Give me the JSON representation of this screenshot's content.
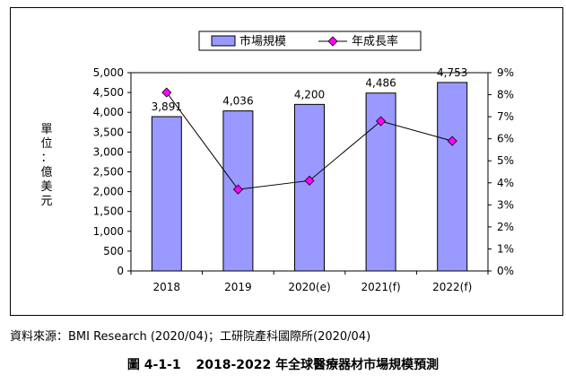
{
  "chart_data": {
    "type": "bar+line",
    "categories": [
      "2018",
      "2019",
      "2020(e)",
      "2021(f)",
      "2022(f)"
    ],
    "series": [
      {
        "name": "市場規模",
        "type": "bar",
        "axis": "left",
        "values": [
          3891,
          4036,
          4200,
          4486,
          4753
        ],
        "labels": [
          "3,891",
          "4,036",
          "4,200",
          "4,486",
          "4,753"
        ],
        "color": "#9999ff"
      },
      {
        "name": "年成長率",
        "type": "line",
        "axis": "right",
        "values": [
          8.1,
          3.7,
          4.1,
          6.8,
          5.9
        ],
        "color": "#ff00ff"
      }
    ],
    "y_left": {
      "title": "單位：億美元",
      "range": [
        0,
        5000
      ],
      "ticks": [
        "0",
        "500",
        "1,000",
        "1,500",
        "2,000",
        "2,500",
        "3,000",
        "3,500",
        "4,000",
        "4,500",
        "5,000"
      ]
    },
    "y_right": {
      "range": [
        0,
        9
      ],
      "ticks": [
        "0%",
        "1%",
        "2%",
        "3%",
        "4%",
        "5%",
        "6%",
        "7%",
        "8%",
        "9%"
      ]
    },
    "legend_position": "top-center",
    "gridlines": false
  },
  "source_note": "資料來源：BMI Research (2020/04)；工研院產科國際所(2020/04)",
  "caption": {
    "figure_no": "圖 4-1-1",
    "title": "2018-2022 年全球醫療器材市場規模預測"
  }
}
